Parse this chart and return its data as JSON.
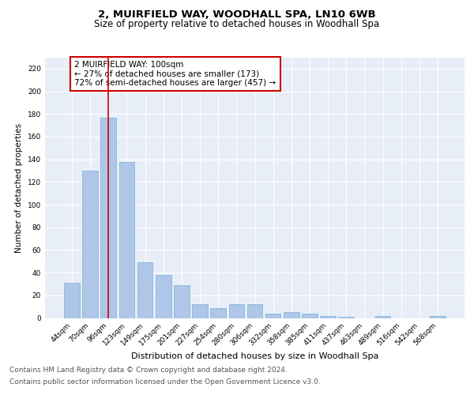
{
  "title": "2, MUIRFIELD WAY, WOODHALL SPA, LN10 6WB",
  "subtitle": "Size of property relative to detached houses in Woodhall Spa",
  "xlabel": "Distribution of detached houses by size in Woodhall Spa",
  "ylabel": "Number of detached properties",
  "categories": [
    "44sqm",
    "70sqm",
    "96sqm",
    "123sqm",
    "149sqm",
    "175sqm",
    "201sqm",
    "227sqm",
    "254sqm",
    "280sqm",
    "306sqm",
    "332sqm",
    "358sqm",
    "385sqm",
    "411sqm",
    "437sqm",
    "463sqm",
    "489sqm",
    "516sqm",
    "542sqm",
    "568sqm"
  ],
  "values": [
    31,
    130,
    177,
    138,
    49,
    38,
    29,
    12,
    9,
    12,
    12,
    4,
    5,
    4,
    2,
    1,
    0,
    2,
    0,
    0,
    2
  ],
  "bar_color": "#aec6e8",
  "bar_edge_color": "#7bafd4",
  "vline_x": 2,
  "vline_color": "#cc0000",
  "annotation_text": "2 MUIRFIELD WAY: 100sqm\n← 27% of detached houses are smaller (173)\n72% of semi-detached houses are larger (457) →",
  "annotation_box_color": "#ffffff",
  "annotation_box_edge": "#cc0000",
  "ylim": [
    0,
    230
  ],
  "yticks": [
    0,
    20,
    40,
    60,
    80,
    100,
    120,
    140,
    160,
    180,
    200,
    220
  ],
  "footer_line1": "Contains HM Land Registry data © Crown copyright and database right 2024.",
  "footer_line2": "Contains public sector information licensed under the Open Government Licence v3.0.",
  "background_color": "#e8eef8",
  "title_fontsize": 9.5,
  "subtitle_fontsize": 8.5,
  "xlabel_fontsize": 8,
  "ylabel_fontsize": 7.5,
  "tick_fontsize": 6.5,
  "annotation_fontsize": 7.5,
  "footer_fontsize": 6.5
}
